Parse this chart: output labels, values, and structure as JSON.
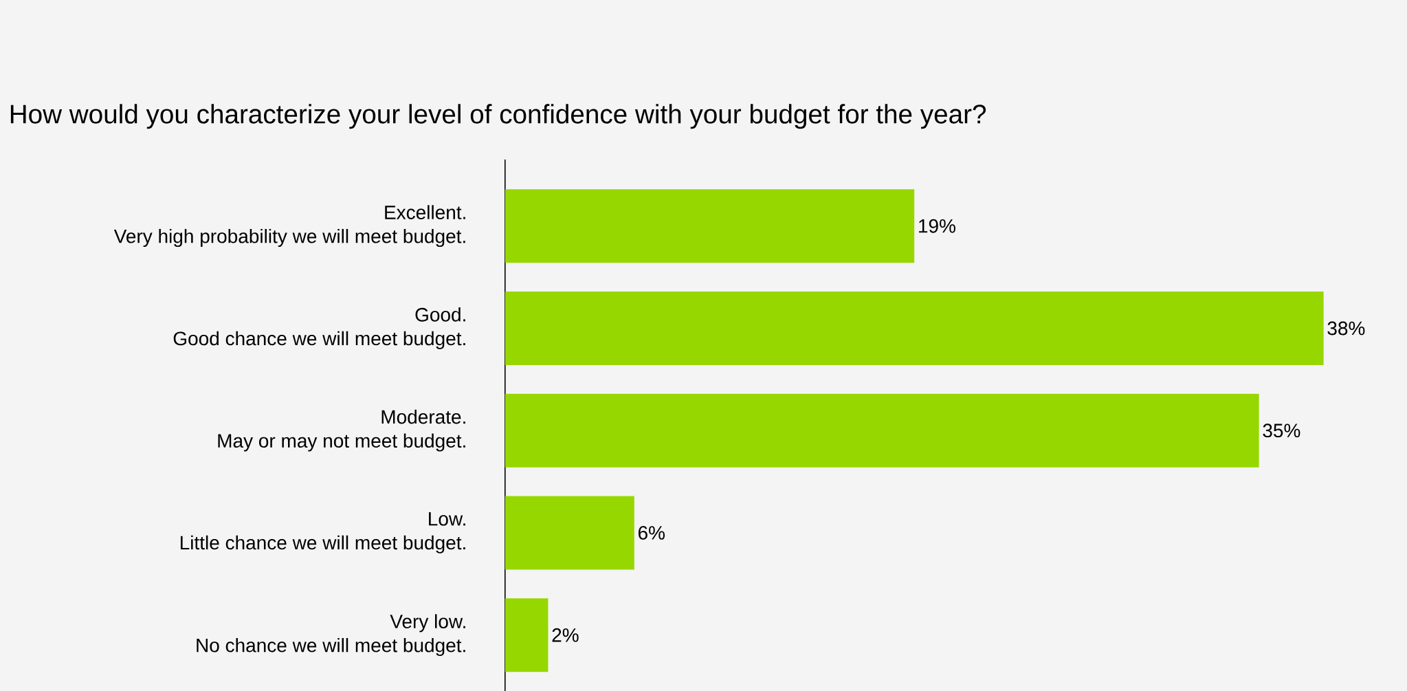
{
  "chart_data": {
    "type": "bar",
    "orientation": "horizontal",
    "title": "How would you characterize your level of confidence with your budget for the year?",
    "categories": [
      "Excellent. Very high probability we will meet budget.",
      "Good. Good chance we will meet budget.",
      "Moderate. May or may not meet budget.",
      "Low. Little chance we will meet budget.",
      "Very low. No chance we will meet budget."
    ],
    "values": [
      19,
      38,
      35,
      6,
      2
    ],
    "value_labels": [
      "19%",
      "38%",
      "35%",
      "6%",
      "2%"
    ],
    "color": "#97d700"
  }
}
